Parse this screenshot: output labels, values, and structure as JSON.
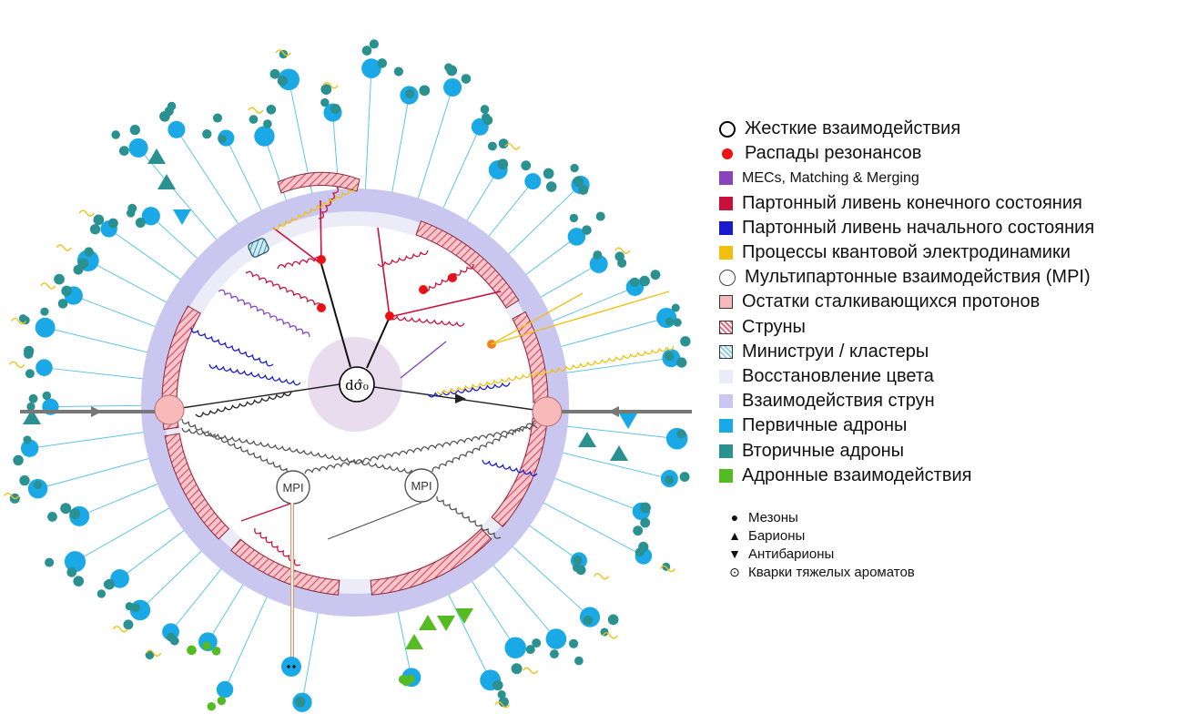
{
  "diagram": {
    "hard_label": "dσ̂₀",
    "mpi_label": "MPI",
    "colors": {
      "primary_hadron": "#1aa9e6",
      "secondary_hadron": "#2a9090",
      "hadron_interaction": "#55bb22",
      "fsr": "#c8103c",
      "isr": "#1a1acc",
      "qed": "#f0c010",
      "mec": "#8844bb",
      "resonance": "#ee1111",
      "beam_remnant": "#f7b9b9",
      "string": "#e46b7d",
      "color_reconnection": "#ecebf8",
      "string_interaction": "#c9c7f0",
      "hard_blob": "#e9dcee"
    }
  },
  "legend": [
    {
      "id": "hard",
      "label": "Жесткие взаимодействия",
      "swatch": "circle-open-thick",
      "color": "#000000"
    },
    {
      "id": "resonance",
      "label": "Распады резонансов",
      "swatch": "dot",
      "color": "#ee1111"
    },
    {
      "id": "mec",
      "label": "MECs, Matching & Merging",
      "swatch": "square",
      "color": "#8844bb",
      "small": true
    },
    {
      "id": "fsr",
      "label": "Партонный ливень конечного состояния",
      "swatch": "square",
      "color": "#c8103c"
    },
    {
      "id": "isr",
      "label": "Партонный ливень начального состояния",
      "swatch": "square",
      "color": "#1a1acc"
    },
    {
      "id": "qed",
      "label": "Процессы квантовой электродинамики",
      "swatch": "square",
      "color": "#f0c010"
    },
    {
      "id": "mpi",
      "label": "Мультипартонные взаимодействия (MPI)",
      "swatch": "circle-open",
      "color": "#444444"
    },
    {
      "id": "remnant",
      "label": "Остатки сталкивающихся протонов",
      "swatch": "square-outline",
      "color": "#f7b9b9"
    },
    {
      "id": "strings",
      "label": "Струны",
      "swatch": "hatch",
      "color": "#e46b7d"
    },
    {
      "id": "ministrings",
      "label": "Министруи / кластеры",
      "swatch": "hatch",
      "color": "#8fd0e4"
    },
    {
      "id": "cr",
      "label": "Восстановление цвета",
      "swatch": "square",
      "color": "#ecebf8"
    },
    {
      "id": "si",
      "label": "Взаимодействия струн",
      "swatch": "square",
      "color": "#c9c7f0"
    },
    {
      "id": "primary",
      "label": "Первичные адроны",
      "swatch": "square",
      "color": "#1aa9e6"
    },
    {
      "id": "secondary",
      "label": "Вторичные адроны",
      "swatch": "square",
      "color": "#2a9090"
    },
    {
      "id": "hadint",
      "label": "Адронные взаимодействия",
      "swatch": "square",
      "color": "#55bb22"
    }
  ],
  "legend_shapes": [
    {
      "id": "mesons",
      "label": "Мезоны",
      "symbol": "●"
    },
    {
      "id": "baryons",
      "label": "Барионы",
      "symbol": "▲"
    },
    {
      "id": "antibaryons",
      "label": "Антибарионы",
      "symbol": "▼"
    },
    {
      "id": "heavy",
      "label": "Кварки тяжелых ароматов",
      "symbol": "⊙"
    }
  ]
}
